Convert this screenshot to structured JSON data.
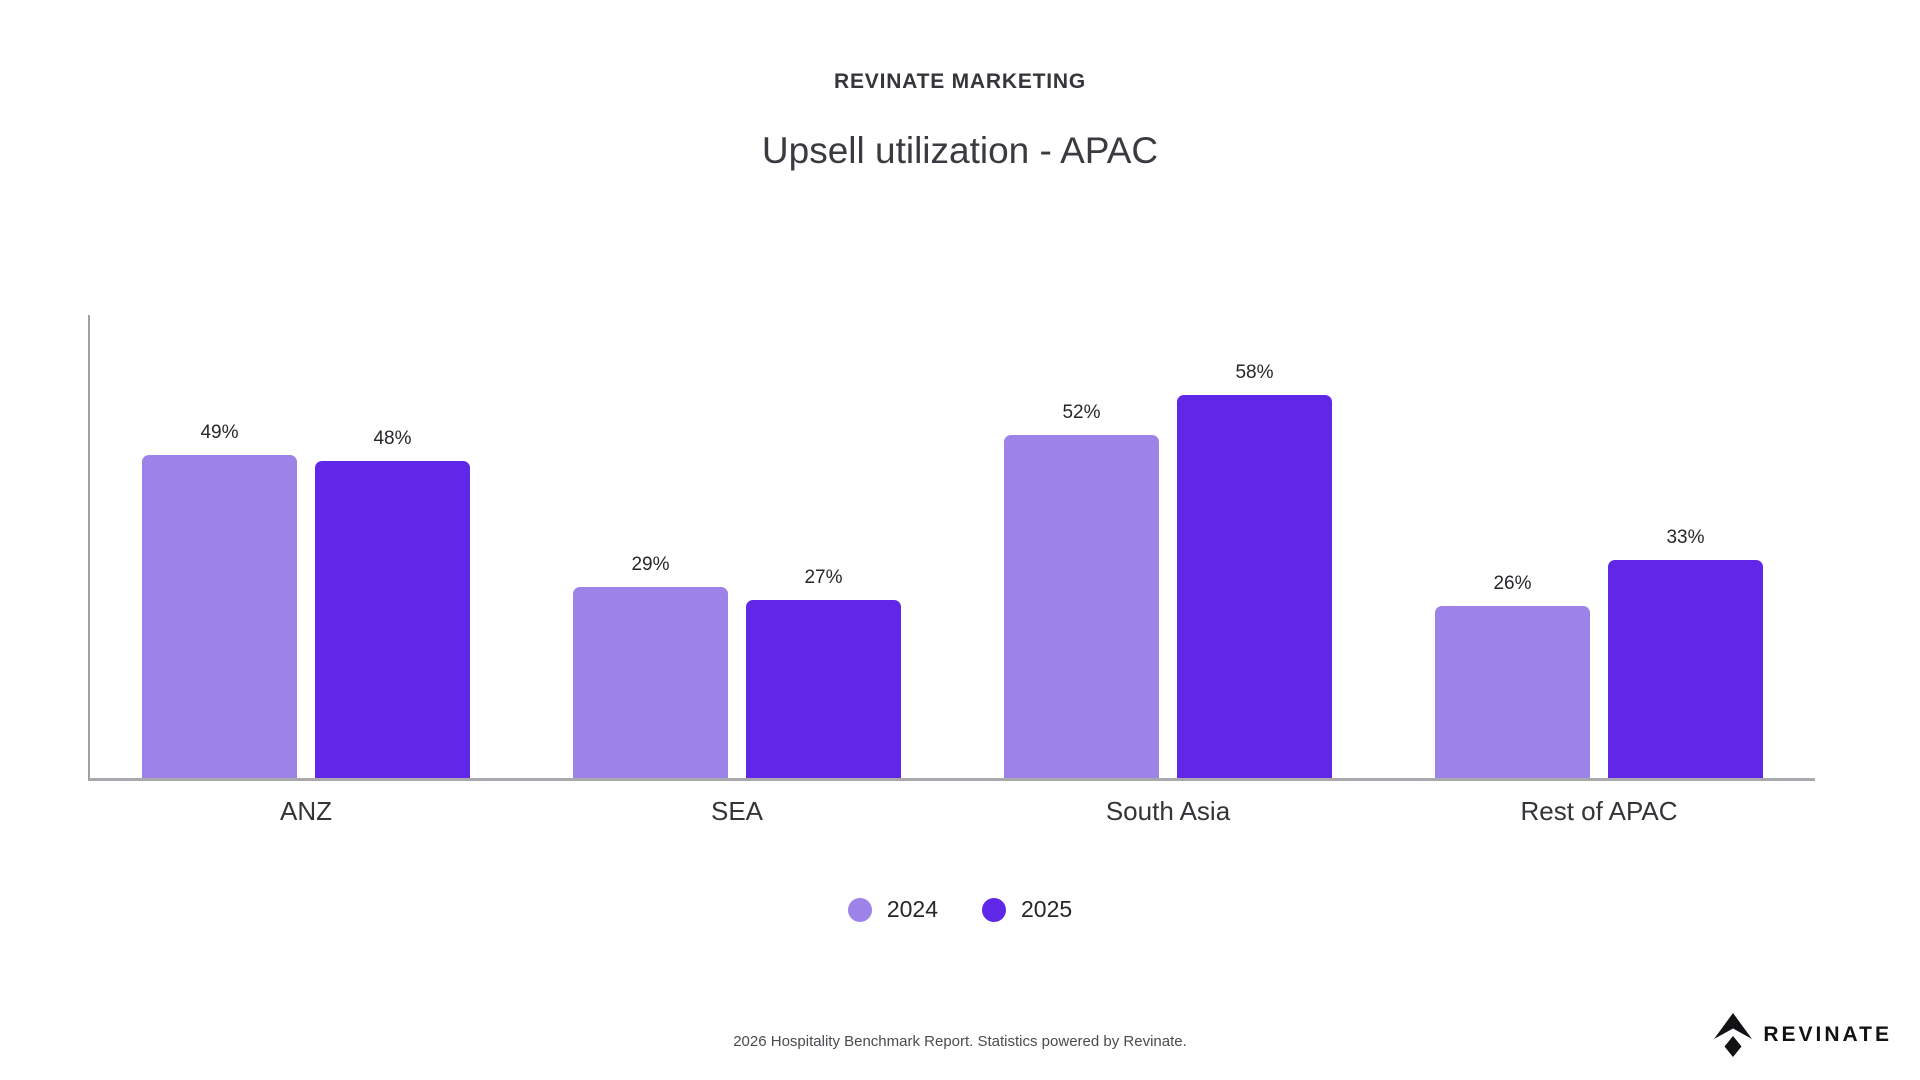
{
  "header": {
    "kicker": "REVINATE MARKETING",
    "title": "Upsell utilization - APAC"
  },
  "chart_data": {
    "type": "bar",
    "title": "Upsell utilization - APAC",
    "categories": [
      "ANZ",
      "SEA",
      "South Asia",
      "Rest of APAC"
    ],
    "series": [
      {
        "name": "2024",
        "color": "#9d82e8",
        "values": [
          49,
          29,
          52,
          26
        ]
      },
      {
        "name": "2025",
        "color": "#6127e8",
        "values": [
          48,
          27,
          58,
          33
        ]
      }
    ],
    "unit": "%",
    "value_labels": true,
    "xlabel": "",
    "ylabel": "",
    "ylim": [
      0,
      70
    ],
    "grid": false,
    "legend_position": "bottom",
    "axis_color": "#a2a1a6"
  },
  "legend": {
    "items": [
      {
        "label": "2024",
        "color": "#9d82e8"
      },
      {
        "label": "2025",
        "color": "#6127e8"
      }
    ]
  },
  "footer": {
    "note": "2026 Hospitality Benchmark Report. Statistics powered by Revinate.",
    "brand_text": "REVINATE",
    "logo_icon": "revinate-chevron-diamond-icon",
    "logo_color": "#121214"
  }
}
